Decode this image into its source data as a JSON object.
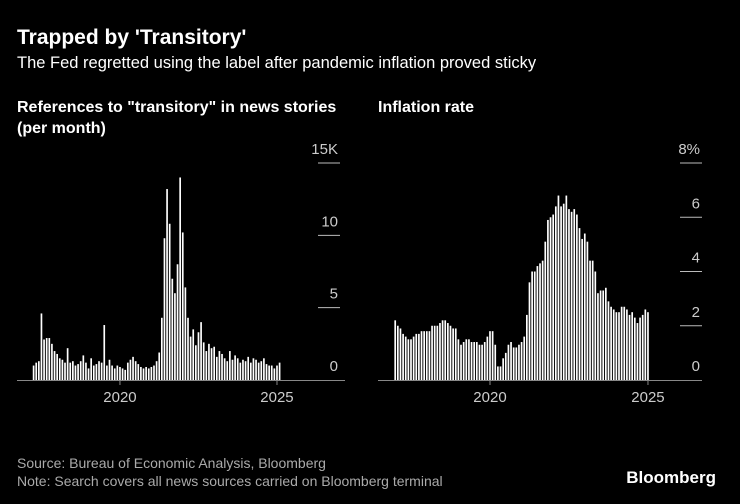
{
  "title": "Trapped by 'Transitory'",
  "subtitle": "The Fed regretted using the label after pandemic inflation proved sticky",
  "source": "Source: Bureau of Economic Analysis, Bloomberg",
  "note": "Note: Search covers all news sources carried on Bloomberg terminal",
  "brand": "Bloomberg",
  "chart_data": [
    {
      "type": "bar",
      "title": "References to \"transitory\" in news stories (per month)",
      "color": "#ffffff",
      "categories": [
        null,
        null,
        null,
        null,
        null,
        null,
        null,
        null,
        null,
        null,
        null,
        null,
        null,
        null,
        null,
        null,
        null,
        null,
        null,
        null,
        null,
        null,
        null,
        null,
        null,
        null,
        null,
        null,
        null,
        null,
        null,
        null,
        null,
        "2020",
        null,
        null,
        null,
        null,
        null,
        null,
        null,
        null,
        null,
        null,
        null,
        null,
        null,
        null,
        null,
        null,
        null,
        null,
        null,
        null,
        null,
        null,
        null,
        null,
        null,
        null,
        null,
        null,
        null,
        null,
        null,
        null,
        null,
        null,
        null,
        null,
        null,
        null,
        null,
        null,
        null,
        null,
        null,
        null,
        null,
        null,
        null,
        null,
        null,
        null,
        null,
        null,
        null,
        null,
        null,
        null,
        null,
        null,
        null,
        "2025",
        null
      ],
      "values": [
        1.0,
        1.2,
        1.3,
        4.6,
        2.8,
        2.9,
        2.9,
        2.5,
        2.0,
        1.8,
        1.5,
        1.4,
        1.2,
        2.2,
        1.2,
        1.3,
        1.0,
        1.1,
        1.3,
        1.7,
        1.2,
        0.8,
        1.5,
        1.0,
        1.1,
        1.3,
        1.2,
        3.8,
        1.0,
        1.4,
        1.0,
        0.8,
        1.0,
        0.9,
        0.8,
        0.7,
        1.2,
        1.4,
        1.6,
        1.3,
        1.1,
        0.9,
        0.8,
        0.9,
        0.8,
        0.9,
        1.0,
        1.3,
        1.9,
        4.3,
        9.8,
        13.2,
        10.8,
        7.0,
        6.0,
        8.0,
        14.0,
        10.2,
        6.4,
        4.3,
        3.0,
        3.5,
        2.4,
        3.3,
        4.0,
        2.6,
        2.0,
        2.5,
        2.2,
        2.3,
        1.6,
        2.0,
        1.8,
        1.5,
        1.3,
        2.0,
        1.4,
        1.7,
        1.5,
        1.2,
        1.4,
        1.3,
        1.6,
        1.2,
        1.5,
        1.4,
        1.2,
        1.3,
        1.5,
        1.1,
        1.0,
        1.0,
        0.8,
        1.0,
        1.2
      ],
      "ylim": [
        0,
        15
      ],
      "yticks": [
        0,
        5,
        10,
        {
          "value": 15,
          "label": "15K"
        }
      ]
    },
    {
      "type": "bar",
      "title": "Inflation rate",
      "color": "#ffffff",
      "categories": [
        null,
        null,
        null,
        null,
        null,
        null,
        null,
        null,
        null,
        null,
        null,
        null,
        null,
        null,
        null,
        null,
        null,
        null,
        null,
        null,
        null,
        null,
        null,
        null,
        null,
        null,
        null,
        null,
        null,
        null,
        null,
        null,
        null,
        null,
        null,
        null,
        "2020",
        null,
        null,
        null,
        null,
        null,
        null,
        null,
        null,
        null,
        null,
        null,
        null,
        null,
        null,
        null,
        null,
        null,
        null,
        null,
        null,
        null,
        null,
        null,
        null,
        null,
        null,
        null,
        null,
        null,
        null,
        null,
        null,
        null,
        null,
        null,
        null,
        null,
        null,
        null,
        null,
        null,
        null,
        null,
        null,
        null,
        null,
        null,
        null,
        null,
        null,
        null,
        null,
        null,
        null,
        null,
        null,
        null,
        null,
        null,
        "2025"
      ],
      "values": [
        2.2,
        2.0,
        1.9,
        1.7,
        1.6,
        1.5,
        1.5,
        1.6,
        1.7,
        1.7,
        1.8,
        1.8,
        1.8,
        1.8,
        2.0,
        2.0,
        2.0,
        2.1,
        2.2,
        2.2,
        2.1,
        2.0,
        1.9,
        1.9,
        1.5,
        1.3,
        1.4,
        1.5,
        1.5,
        1.4,
        1.4,
        1.4,
        1.3,
        1.3,
        1.4,
        1.6,
        1.8,
        1.8,
        1.3,
        0.5,
        0.5,
        0.8,
        1.0,
        1.3,
        1.4,
        1.2,
        1.2,
        1.3,
        1.4,
        1.6,
        2.4,
        3.6,
        4.0,
        4.0,
        4.2,
        4.3,
        4.4,
        5.1,
        5.9,
        6.0,
        6.1,
        6.4,
        6.8,
        6.4,
        6.5,
        6.8,
        6.3,
        6.2,
        6.3,
        6.1,
        5.6,
        5.2,
        5.4,
        5.1,
        4.4,
        4.4,
        4.0,
        3.2,
        3.3,
        3.3,
        3.4,
        2.9,
        2.7,
        2.6,
        2.5,
        2.5,
        2.7,
        2.7,
        2.6,
        2.4,
        2.5,
        2.3,
        2.1,
        2.3,
        2.4,
        2.6,
        2.5
      ],
      "ylim": [
        0,
        8
      ],
      "yticks": [
        0,
        2,
        4,
        6,
        {
          "value": 8,
          "label": "8%"
        }
      ]
    }
  ]
}
